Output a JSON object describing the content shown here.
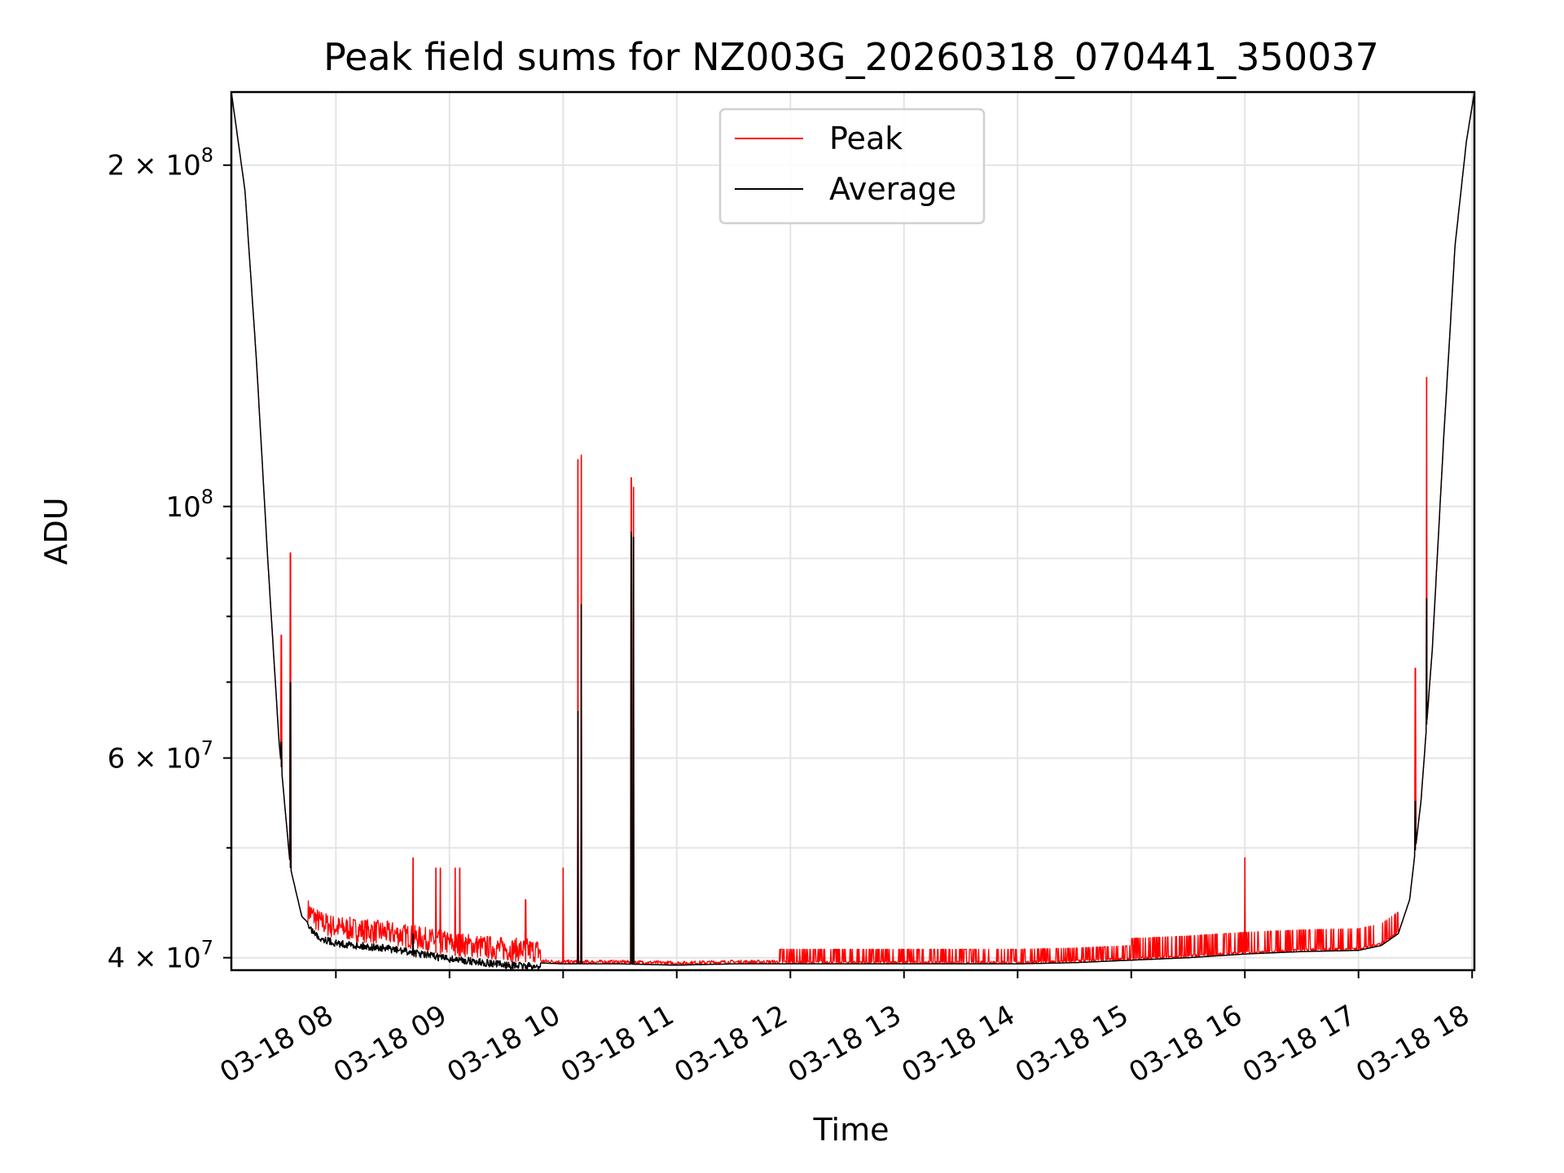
{
  "chart_data": {
    "type": "line",
    "title": "Peak field sums for NZ003G_20260318_070441_350037",
    "xlabel": "Time",
    "ylabel": "ADU",
    "yscale": "log",
    "ylim": [
      39000000,
      232000000
    ],
    "xlim": [
      7.08,
      18.02
    ],
    "grid": true,
    "legend_position": "top-center",
    "x_ticks": [
      {
        "value": 8,
        "label": "03-18 08"
      },
      {
        "value": 9,
        "label": "03-18 09"
      },
      {
        "value": 10,
        "label": "03-18 10"
      },
      {
        "value": 11,
        "label": "03-18 11"
      },
      {
        "value": 12,
        "label": "03-18 12"
      },
      {
        "value": 13,
        "label": "03-18 13"
      },
      {
        "value": 14,
        "label": "03-18 14"
      },
      {
        "value": 15,
        "label": "03-18 15"
      },
      {
        "value": 16,
        "label": "03-18 16"
      },
      {
        "value": 17,
        "label": "03-18 17"
      },
      {
        "value": 18,
        "label": "03-18 18"
      }
    ],
    "y_ticks": [
      {
        "value": 40000000,
        "base": "4 × 10",
        "exp": "7"
      },
      {
        "value": 60000000,
        "base": "6 × 10",
        "exp": "7"
      },
      {
        "value": 100000000,
        "base": "10",
        "exp": "8"
      },
      {
        "value": 200000000,
        "base": "2 × 10",
        "exp": "8"
      }
    ],
    "y_minor_ticks": [
      50000000,
      70000000,
      80000000,
      90000000
    ],
    "series": [
      {
        "name": "Peak",
        "color": "#ff0000",
        "spikes": [
          {
            "x": 7.52,
            "y": 77000000
          },
          {
            "x": 7.6,
            "y": 91000000
          },
          {
            "x": 8.68,
            "y": 49000000
          },
          {
            "x": 8.88,
            "y": 48000000
          },
          {
            "x": 8.92,
            "y": 48000000
          },
          {
            "x": 9.05,
            "y": 48000000
          },
          {
            "x": 9.09,
            "y": 48000000
          },
          {
            "x": 9.67,
            "y": 45000000
          },
          {
            "x": 10.0,
            "y": 48000000
          },
          {
            "x": 10.13,
            "y": 110000000
          },
          {
            "x": 10.16,
            "y": 111000000
          },
          {
            "x": 10.6,
            "y": 106000000
          },
          {
            "x": 10.62,
            "y": 104000000
          },
          {
            "x": 16.0,
            "y": 49000000
          },
          {
            "x": 17.5,
            "y": 72000000
          },
          {
            "x": 17.6,
            "y": 130000000
          }
        ]
      },
      {
        "name": "Average",
        "color": "#000000",
        "baseline": [
          [
            7.08,
            232000000
          ],
          [
            7.2,
            190000000
          ],
          [
            7.3,
            135000000
          ],
          [
            7.4,
            90000000
          ],
          [
            7.5,
            62000000
          ],
          [
            7.6,
            48000000
          ],
          [
            7.7,
            43500000
          ],
          [
            7.85,
            42000000
          ],
          [
            8.0,
            41500000
          ],
          [
            8.5,
            41000000
          ],
          [
            9.0,
            40200000
          ],
          [
            9.5,
            39700000
          ],
          [
            10.0,
            39500000
          ],
          [
            10.5,
            39500000
          ],
          [
            11.0,
            39400000
          ],
          [
            11.5,
            39500000
          ],
          [
            12.0,
            39500000
          ],
          [
            13.0,
            39500000
          ],
          [
            14.0,
            39500000
          ],
          [
            14.5,
            39600000
          ],
          [
            15.0,
            39800000
          ],
          [
            15.5,
            40000000
          ],
          [
            16.0,
            40300000
          ],
          [
            16.5,
            40500000
          ],
          [
            17.0,
            40600000
          ],
          [
            17.2,
            41000000
          ],
          [
            17.35,
            42000000
          ],
          [
            17.45,
            45000000
          ],
          [
            17.55,
            55000000
          ],
          [
            17.65,
            75000000
          ],
          [
            17.75,
            115000000
          ],
          [
            17.85,
            170000000
          ],
          [
            17.95,
            210000000
          ],
          [
            18.02,
            232000000
          ]
        ],
        "spikes": [
          {
            "x": 7.52,
            "y": 62000000
          },
          {
            "x": 7.6,
            "y": 70000000
          },
          {
            "x": 8.68,
            "y": 42000000
          },
          {
            "x": 10.13,
            "y": 66000000
          },
          {
            "x": 10.16,
            "y": 82000000
          },
          {
            "x": 10.6,
            "y": 95000000
          },
          {
            "x": 10.62,
            "y": 94000000
          },
          {
            "x": 17.5,
            "y": 55000000
          },
          {
            "x": 17.6,
            "y": 83000000
          }
        ]
      }
    ]
  }
}
